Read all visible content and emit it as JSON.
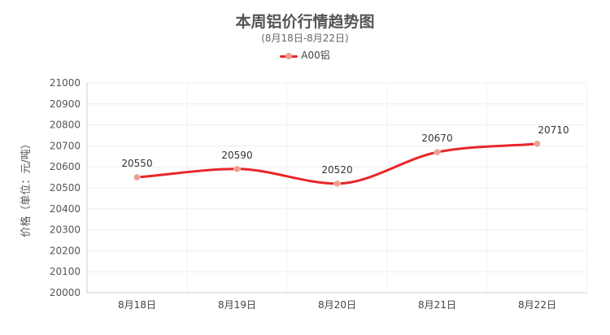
{
  "chart_data": {
    "type": "line",
    "title": "本周铝价行情趋势图",
    "subtitle": "(8月18日-8月22日)",
    "ylabel": "价格（单位：元/吨）",
    "xlabel": "",
    "categories": [
      "8月18日",
      "8月19日",
      "8月20日",
      "8月21日",
      "8月22日"
    ],
    "series": [
      {
        "name": "A00铝",
        "values": [
          20550,
          20590,
          20520,
          20670,
          20710
        ],
        "color": "#e8262a",
        "marker_color": "#ef9f8e"
      }
    ],
    "ylim": [
      20000,
      21000
    ],
    "yticks": [
      20000,
      20100,
      20200,
      20300,
      20400,
      20500,
      20600,
      20700,
      20800,
      20900,
      21000
    ],
    "smooth": true,
    "grid": true,
    "legend": "top-center",
    "data_labels": true
  }
}
